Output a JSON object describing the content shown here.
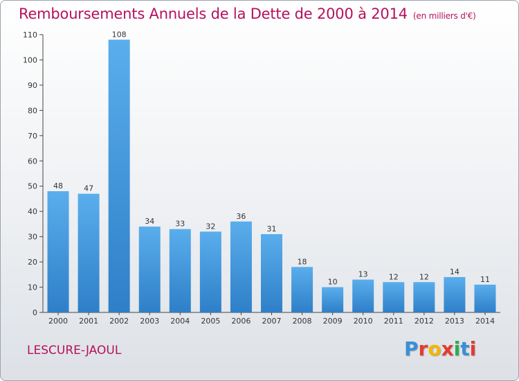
{
  "chart_data": {
    "type": "bar",
    "title": "Remboursements Annuels de la Dette de 2000 à 2014",
    "subtitle": "(en milliers d'€)",
    "categories": [
      "2000",
      "2001",
      "2002",
      "2003",
      "2004",
      "2005",
      "2006",
      "2007",
      "2008",
      "2009",
      "2010",
      "2011",
      "2012",
      "2013",
      "2014"
    ],
    "values": [
      48,
      47,
      108,
      34,
      33,
      32,
      36,
      31,
      18,
      10,
      13,
      12,
      12,
      14,
      11
    ],
    "ylim": [
      0,
      110
    ],
    "yticks": [
      0,
      10,
      20,
      30,
      40,
      50,
      60,
      70,
      80,
      90,
      100,
      110
    ],
    "xlabel": "",
    "ylabel": "",
    "grid": false
  },
  "footer": {
    "commune": "LESCURE-JAOUL",
    "logo_letters": [
      {
        "char": "P",
        "color": "#3a8fd6"
      },
      {
        "char": "r",
        "color": "#e63a2e"
      },
      {
        "char": "o",
        "color": "#f2b705"
      },
      {
        "char": "x",
        "color": "#e63a2e"
      },
      {
        "char": "i",
        "color": "#2eaa4a"
      },
      {
        "char": "t",
        "color": "#3a8fd6"
      },
      {
        "char": "i",
        "color": "#e63a2e"
      }
    ]
  },
  "colors": {
    "bar_top": "#5aaeec",
    "bar_bottom": "#2e7fc8",
    "title": "#b5115c"
  }
}
